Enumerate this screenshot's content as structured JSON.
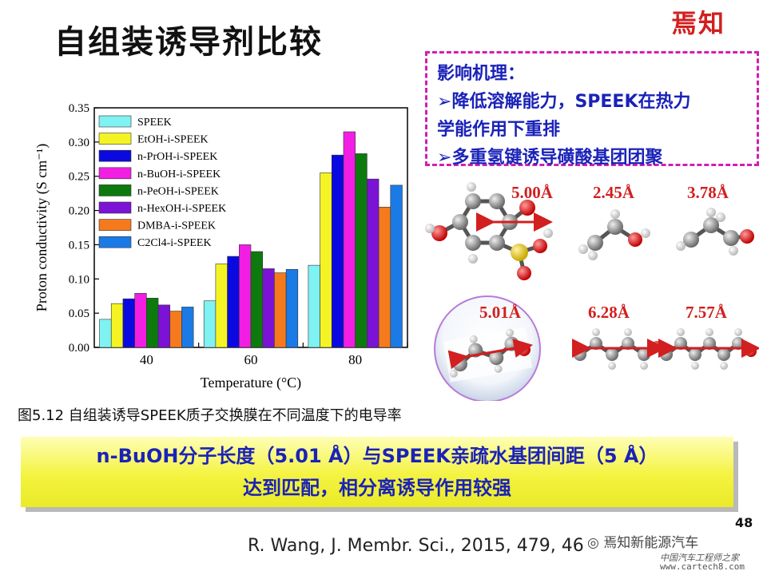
{
  "slide": {
    "title": "自组装诱导剂比较",
    "logo_text": "焉知",
    "page_number": "48",
    "reference": "R. Wang, J. Membr. Sci., 2015, 479, 46",
    "watermark": "焉知新能源汽车",
    "watermark_sub": "中国汽车工程师之家",
    "watermark_url": "www.cartech8.com"
  },
  "mechanism": {
    "title": "影响机理：",
    "points": [
      "降低溶解能力，SPEEK在热力",
      "学能作用下重排",
      "多重氢键诱导磺酸基团团聚"
    ]
  },
  "caption": "图5.12 自组装诱导SPEEK质子交换膜在不同温度下的电导率",
  "conclusion": {
    "line1": "n-BuOH分子长度（5.01 Å）与SPEEK亲疏水基团间距（5 Å）",
    "line2": "达到匹配，相分离诱导作用较强"
  },
  "annotations": {
    "speek_group": "5.00Å",
    "etoh": "2.45Å",
    "proh": "3.78Å",
    "buoh": "5.01Å",
    "peoh": "6.28Å",
    "hexoh": "7.57Å"
  },
  "colors": {
    "accent_red": "#d21f1f",
    "text_blue": "#1a22b8",
    "box_magenta": "#d01eb4",
    "highlight_yellow": "#f4f340"
  },
  "chart_data": {
    "type": "bar",
    "categories": [
      "40",
      "60",
      "80"
    ],
    "xlabel": "Temperature (°C)",
    "ylabel": "Proton conductivity (S cm⁻¹)",
    "ylim": [
      0,
      0.35
    ],
    "yticks": [
      "0.00",
      "0.05",
      "0.10",
      "0.15",
      "0.20",
      "0.25",
      "0.30",
      "0.35"
    ],
    "legend_position": "top-left",
    "series": [
      {
        "name": "SPEEK",
        "color": "#7ff2f2",
        "values": [
          0.041,
          0.068,
          0.12
        ]
      },
      {
        "name": "EtOH-i-SPEEK",
        "color": "#f4f424",
        "values": [
          0.064,
          0.122,
          0.255
        ]
      },
      {
        "name": "n-PrOH-i-SPEEK",
        "color": "#0a0ae0",
        "values": [
          0.071,
          0.133,
          0.281
        ]
      },
      {
        "name": "n-BuOH-i-SPEEK",
        "color": "#f21ee4",
        "values": [
          0.079,
          0.15,
          0.315
        ]
      },
      {
        "name": "n-PeOH-i-SPEEK",
        "color": "#0d7a0d",
        "values": [
          0.072,
          0.14,
          0.283
        ]
      },
      {
        "name": "n-HexOH-i-SPEEK",
        "color": "#7b12d6",
        "values": [
          0.062,
          0.115,
          0.246
        ]
      },
      {
        "name": "DMBA-i-SPEEK",
        "color": "#f57a1e",
        "values": [
          0.053,
          0.109,
          0.205
        ]
      },
      {
        "name": "C2Cl4-i-SPEEK",
        "color": "#1a7ae6",
        "values": [
          0.059,
          0.114,
          0.237
        ]
      }
    ]
  }
}
